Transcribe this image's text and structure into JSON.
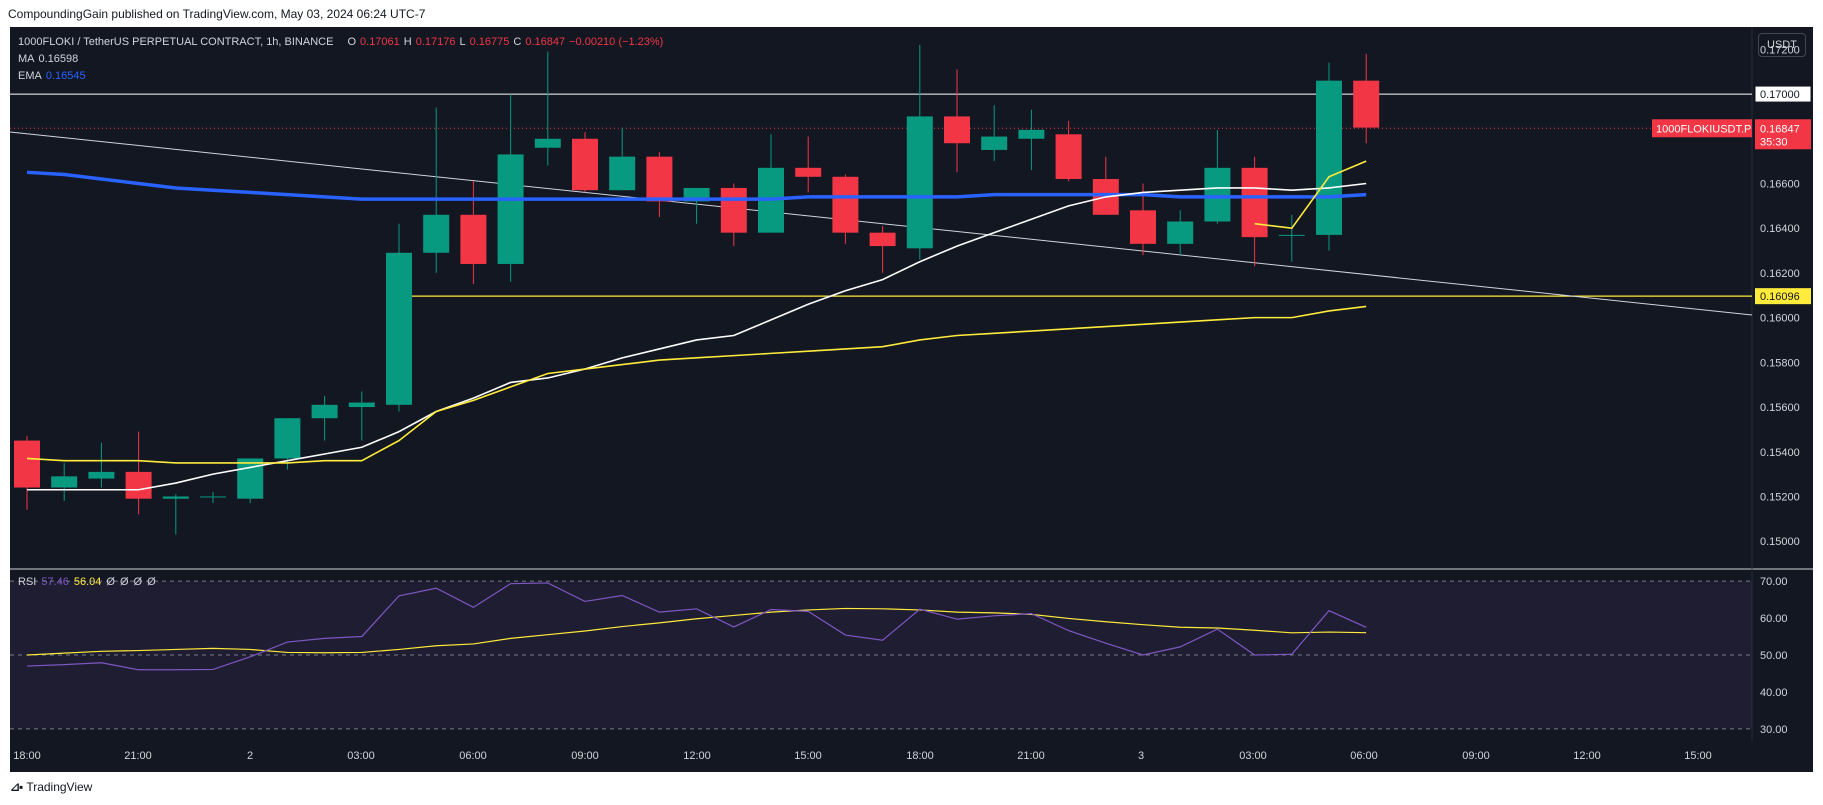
{
  "header": {
    "published": "CompoundingGain published on TradingView.com, May 03, 2024 06:24 UTC-7"
  },
  "legend": {
    "symbol": "1000FLOKI / TetherUS PERPETUAL CONTRACT, 1h, BINANCE",
    "o_label": "O",
    "o": "0.17061",
    "h_label": "H",
    "h": "0.17176",
    "l_label": "L",
    "l": "0.16775",
    "c_label": "C",
    "c": "0.16847",
    "change": "−0.00210 (−1.23%)",
    "ma_label": "MA",
    "ma": "0.16598",
    "ema_label": "EMA",
    "ema": "0.16545"
  },
  "currency_button": "USDT",
  "rsi_legend": {
    "label": "RSI",
    "rsi": "57.46",
    "ma": "56.04",
    "extra": [
      "Ø",
      "Ø",
      "Ø",
      "Ø"
    ]
  },
  "footer": {
    "brand": "TradingView"
  },
  "colors": {
    "bg": "#131722",
    "up": "#089981",
    "down": "#f23645",
    "ema": "#2962ff",
    "ma": "#ffffff",
    "yellow": "#ffeb3b",
    "rsi": "#7e57c2",
    "grid": "#2a2e39"
  },
  "chart_data": [
    {
      "type": "candlestick",
      "symbol": "1000FLOKIUSDT.P",
      "interval": "1h",
      "x": [
        "18:00",
        "19:00",
        "20:00",
        "21:00",
        "22:00",
        "23:00",
        "00:00",
        "01:00",
        "02:00",
        "03:00",
        "04:00",
        "05:00",
        "06:00",
        "07:00",
        "08:00",
        "09:00",
        "10:00",
        "11:00",
        "12:00",
        "13:00",
        "14:00",
        "15:00",
        "16:00",
        "17:00",
        "18:00",
        "19:00",
        "20:00",
        "21:00",
        "22:00",
        "23:00",
        "00:00",
        "01:00",
        "02:00",
        "03:00",
        "04:00",
        "05:00",
        "06:00"
      ],
      "ohlc": [
        [
          0.1545,
          0.1547,
          0.1514,
          0.1524
        ],
        [
          0.1524,
          0.1535,
          0.1518,
          0.1529
        ],
        [
          0.1528,
          0.1544,
          0.1524,
          0.1531
        ],
        [
          0.1531,
          0.1549,
          0.1512,
          0.1519
        ],
        [
          0.1519,
          0.1521,
          0.1503,
          0.152
        ],
        [
          0.152,
          0.1522,
          0.1517,
          0.152
        ],
        [
          0.1519,
          0.1537,
          0.1517,
          0.1537
        ],
        [
          0.1537,
          0.1555,
          0.1532,
          0.1555
        ],
        [
          0.1555,
          0.1565,
          0.1545,
          0.1561
        ],
        [
          0.156,
          0.1567,
          0.1545,
          0.1562
        ],
        [
          0.1561,
          0.1642,
          0.1558,
          0.1629
        ],
        [
          0.1629,
          0.1694,
          0.162,
          0.1646
        ],
        [
          0.1646,
          0.1661,
          0.1615,
          0.1624
        ],
        [
          0.1624,
          0.17,
          0.1616,
          0.1673
        ],
        [
          0.1676,
          0.1719,
          0.1668,
          0.168
        ],
        [
          0.168,
          0.1683,
          0.1656,
          0.1657
        ],
        [
          0.1657,
          0.1685,
          0.1657,
          0.1672
        ],
        [
          0.1672,
          0.1674,
          0.1645,
          0.1652
        ],
        [
          0.1652,
          0.1657,
          0.1642,
          0.1658
        ],
        [
          0.1658,
          0.166,
          0.1632,
          0.1638
        ],
        [
          0.1638,
          0.1682,
          0.1638,
          0.1667
        ],
        [
          0.1667,
          0.1681,
          0.1656,
          0.1663
        ],
        [
          0.1663,
          0.1664,
          0.1633,
          0.1638
        ],
        [
          0.1638,
          0.1641,
          0.162,
          0.1632
        ],
        [
          0.1631,
          0.1722,
          0.1626,
          0.169
        ],
        [
          0.169,
          0.1711,
          0.1665,
          0.1678
        ],
        [
          0.1675,
          0.1695,
          0.167,
          0.1681
        ],
        [
          0.168,
          0.1693,
          0.1666,
          0.1684
        ],
        [
          0.1682,
          0.1688,
          0.1661,
          0.1662
        ],
        [
          0.1662,
          0.1672,
          0.1647,
          0.1646
        ],
        [
          0.1648,
          0.166,
          0.1628,
          0.1633
        ],
        [
          0.1633,
          0.1648,
          0.1628,
          0.1643
        ],
        [
          0.1643,
          0.1684,
          0.1642,
          0.1667
        ],
        [
          0.1667,
          0.1672,
          0.1623,
          0.1636
        ],
        [
          0.1637,
          0.1646,
          0.1625,
          0.1637
        ],
        [
          0.1637,
          0.1714,
          0.163,
          0.1706
        ],
        [
          0.1706,
          0.1718,
          0.1678,
          0.1685
        ]
      ],
      "ema": [
        0.1665,
        0.1664,
        0.1662,
        0.166,
        0.1658,
        0.1657,
        0.1656,
        0.1655,
        0.1654,
        0.1653,
        0.1653,
        0.1653,
        0.1653,
        0.1653,
        0.1653,
        0.1653,
        0.1653,
        0.1653,
        0.1653,
        0.1653,
        0.1653,
        0.1654,
        0.1654,
        0.1654,
        0.1654,
        0.1654,
        0.1655,
        0.1655,
        0.1655,
        0.1655,
        0.1655,
        0.1654,
        0.1654,
        0.1654,
        0.1654,
        0.1654,
        0.1655
      ],
      "ma": [
        0.1523,
        0.1523,
        0.1523,
        0.1523,
        0.1526,
        0.153,
        0.1533,
        0.1536,
        0.1539,
        0.1542,
        0.1549,
        0.1558,
        0.1564,
        0.1571,
        0.1573,
        0.1577,
        0.1582,
        0.1586,
        0.159,
        0.1592,
        0.1599,
        0.1606,
        0.1612,
        0.1617,
        0.1625,
        0.1632,
        0.1638,
        0.1644,
        0.165,
        0.1654,
        0.1656,
        0.1657,
        0.1658,
        0.1658,
        0.1657,
        0.1658,
        0.166
      ],
      "ma_yellow": [
        0.1537,
        0.1536,
        0.1536,
        0.1536,
        0.1535,
        0.1535,
        0.1535,
        0.1535,
        0.1536,
        0.1536,
        0.1545,
        0.1558,
        0.1563,
        0.1569,
        0.1575,
        0.1577,
        0.1579,
        0.1581,
        0.1582,
        0.1583,
        0.1584,
        0.1585,
        0.1586,
        0.1587,
        0.159,
        0.1592,
        0.1593,
        0.1594,
        0.1595,
        0.1596,
        0.1597,
        0.1598,
        0.1599,
        0.16,
        0.16,
        0.1603,
        0.1605
      ],
      "ma_yellow_tail": [
        0.1642,
        0.164,
        0.1663,
        0.167
      ],
      "price_ticks": [
        "0.17200",
        "0.17000",
        "0.16800",
        "0.16600",
        "0.16400",
        "0.16200",
        "0.16000",
        "0.15800",
        "0.15600",
        "0.15400",
        "0.15200",
        "0.15000"
      ],
      "ylim": [
        0.1488,
        0.173
      ],
      "horizontal_lines": [
        {
          "value": 0.17,
          "label": "0.17000",
          "color": "#ffffff"
        },
        {
          "value": 0.16096,
          "label": "0.16096",
          "color": "#ffeb3b"
        }
      ],
      "trend_line": {
        "from": [
          "17:00 (prev)",
          0.1698
        ],
        "to": [
          "15:00",
          0.1606
        ]
      },
      "last_price": {
        "symbol": "1000FLOKIUSDT.P",
        "value": "0.16847",
        "countdown": "35:30"
      },
      "time_axis": [
        "18:00",
        "21:00",
        "2",
        "03:00",
        "06:00",
        "09:00",
        "12:00",
        "15:00",
        "18:00",
        "21:00",
        "3",
        "03:00",
        "06:00",
        "09:00",
        "12:00",
        "15:00"
      ]
    },
    {
      "type": "line",
      "name": "RSI",
      "x": [
        "18:00",
        "19:00",
        "20:00",
        "21:00",
        "22:00",
        "23:00",
        "00:00",
        "01:00",
        "02:00",
        "03:00",
        "04:00",
        "05:00",
        "06:00",
        "07:00",
        "08:00",
        "09:00",
        "10:00",
        "11:00",
        "12:00",
        "13:00",
        "14:00",
        "15:00",
        "16:00",
        "17:00",
        "18:00",
        "19:00",
        "20:00",
        "21:00",
        "22:00",
        "23:00",
        "00:00",
        "01:00",
        "02:00",
        "03:00",
        "04:00",
        "05:00",
        "06:00"
      ],
      "rsi": [
        47,
        47.4,
        47.9,
        46,
        46,
        46.1,
        49.5,
        53.5,
        54.5,
        55,
        66,
        68.1,
        62.9,
        69.3,
        69.5,
        64.5,
        66.1,
        61.6,
        62.5,
        57.6,
        62.3,
        61.8,
        55.4,
        54,
        62.4,
        59.7,
        60.6,
        61.2,
        56.6,
        53.2,
        50,
        52.2,
        57,
        50,
        50.2,
        62,
        57.5
      ],
      "rsi_ma": [
        50,
        50.5,
        51,
        51.2,
        51.5,
        51.8,
        51.5,
        50.7,
        50.6,
        50.7,
        51.5,
        52.5,
        53,
        54.5,
        55.5,
        56.5,
        57.7,
        58.7,
        59.8,
        60.7,
        61.6,
        62.2,
        62.6,
        62.5,
        62.2,
        61.6,
        61.4,
        61,
        59.9,
        59,
        58.2,
        57.5,
        57.3,
        56.7,
        56,
        56.2,
        56.04
      ],
      "levels": [
        "70.00",
        "60.00",
        "50.00",
        "40.00",
        "30.00"
      ],
      "ylim": [
        27,
        73
      ]
    }
  ]
}
